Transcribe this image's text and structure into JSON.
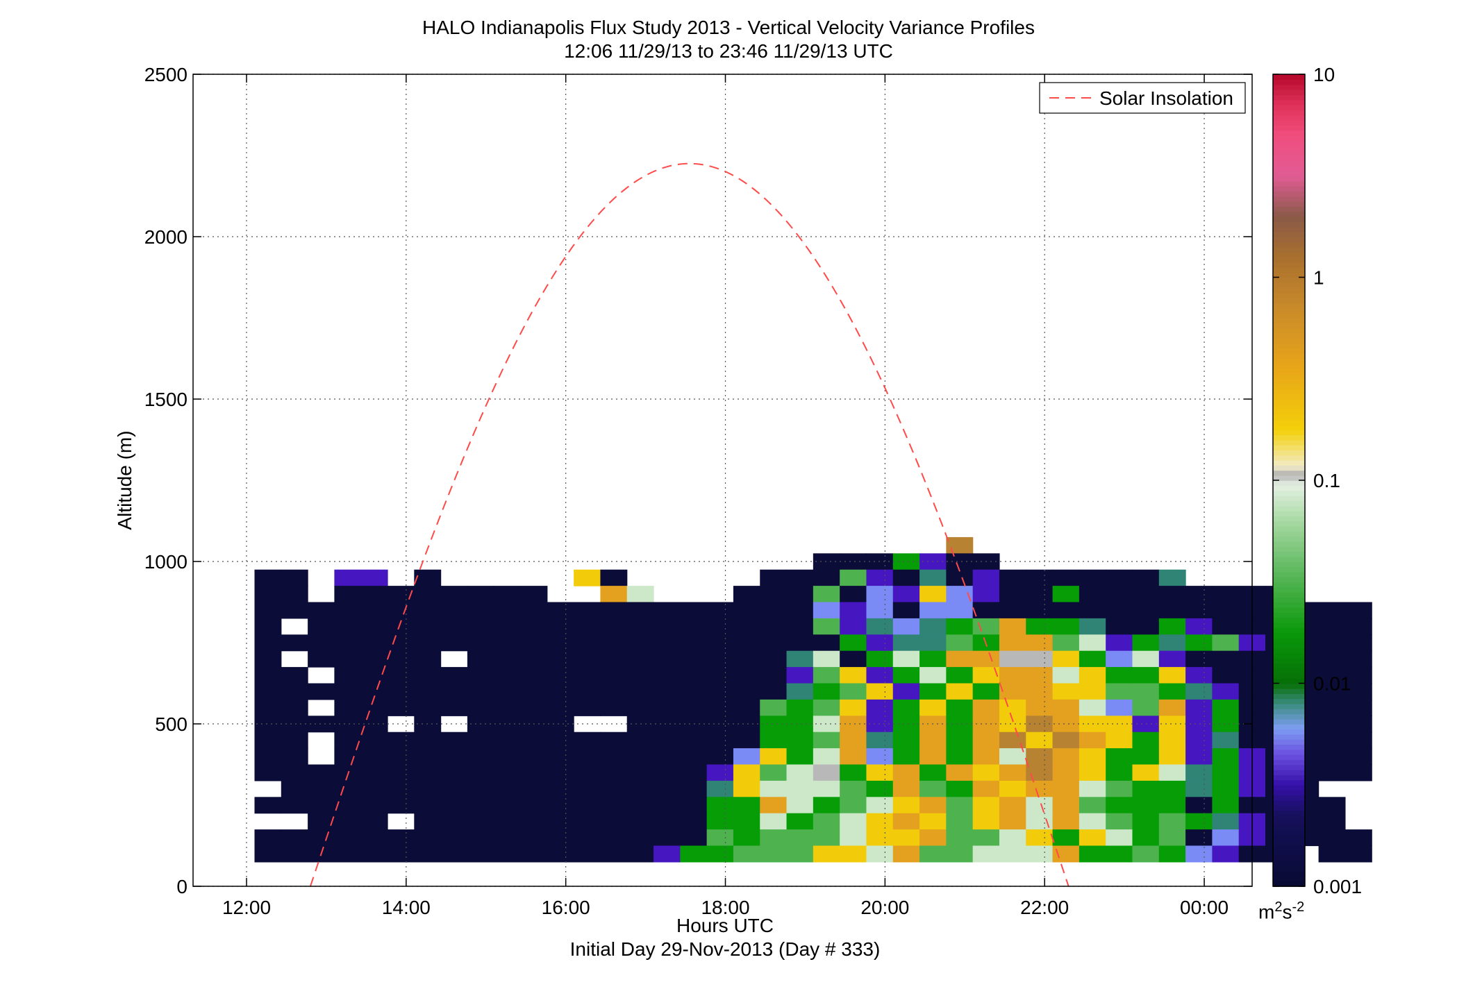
{
  "header": {
    "title_line1": "HALO Indianapolis Flux Study 2013 - Vertical Velocity Variance Profiles",
    "title_line2": "12:06 11/29/13 to 23:46 11/29/13  UTC"
  },
  "footer": {
    "xlabel": "Hours UTC",
    "subtitle": "Initial Day 29-Nov-2013 (Day # 333)"
  },
  "chart_data": {
    "type": "heatmap",
    "title": "HALO Indianapolis Flux Study 2013 - Vertical Velocity Variance Profiles",
    "subtitle": "12:06 11/29/13 to 23:46 11/29/13  UTC",
    "xlabel": "Hours UTC",
    "ylabel": "Altitude (m)",
    "x_unit": "hours UTC",
    "xlim": [
      11.33,
      24.6
    ],
    "ylim": [
      0,
      2500
    ],
    "x_ticks": [
      12,
      14,
      16,
      18,
      20,
      22,
      24
    ],
    "x_tick_labels": [
      "12:00",
      "14:00",
      "16:00",
      "18:00",
      "20:00",
      "22:00",
      "00:00"
    ],
    "y_ticks": [
      0,
      500,
      1000,
      1500,
      2000,
      2500
    ],
    "y_tick_labels": [
      "0",
      "500",
      "1000",
      "1500",
      "2000",
      "2500"
    ],
    "grid": true,
    "legend": {
      "position": "top-right",
      "entries": [
        {
          "label": "Solar Insolation",
          "style": "dashed",
          "color": "#ff4a4a"
        }
      ]
    },
    "colorbar": {
      "scale": "log",
      "range": [
        0.001,
        10
      ],
      "ticks": [
        0.001,
        0.01,
        0.1,
        1,
        10
      ],
      "tick_labels": [
        "0.001",
        "0.01",
        "0.1",
        "1",
        "10"
      ],
      "unit_base": "m",
      "unit_exp1": "2",
      "unit_mid": "s",
      "unit_exp2": "-2"
    },
    "heatmap_grid": {
      "x_start_hours": 12.1,
      "cell_width_hours": 0.3333,
      "y_start_m": 75,
      "cell_height_m": 50,
      "legend_key": "D: <0.001, P: ~0.003, B: ~0.005, T: ~0.008, G: ~0.01-0.02, L: ~0.05, W: ~0.1, S: ~0.13, Y: ~0.2, O: ~0.4, N: ~0.8, .: no data",
      "rows_top_to_bottom": [
        "..........................N...............",
        ".....................DDDGPDD..............",
        "DD.PP.D.....YD.....DDDLPDTDPDDDDDDT.......",
        "DD.DDDDDDDD..OW...DDDLDBPYBPDDGDDDDDDDD...",
        "DDDDDDDDDDDDDDDDDDDDDBPBDBBDDDDDDDDDDDDDDD",
        "D.DDDDDDDDDDDDDDDDDDDLPTBTGLOGGTDDGPDDDDDD",
        "DDDDDDDDDDDDDDDDDDDDDDGPTTLGOOLWPGTGLPDDDD",
        "D.DDDDD.DDDDDDDDDDDDTWDGWGOOSSYGBWPDDDDDDD",
        "DD.DDDDDDDDDDDDDDDDDPLYPGWGYOOWYGGYPDDDDDD",
        "DDDDDDDDDDDDDDDDDDDDTGLYPGYGOOYYLLGTPDDDDD",
        "DD.DDDDDDDDDDDDDDDDLGLYPGYGOYOOWBLOPGDDDDD",
        "DDDDD.D.DDDD..DDDDDGGWOPGOGOYNOYYPYPGDDDDD",
        "DD.DDDDDDDDDDDDDDDDGGLOTGOGONYNOYGYPTDDDDD",
        "DD.DDDDDDDDDDDDDDDBYGWOBGOGOWNOYGGYPGPDDDD",
        "DDDDDDDDDDDDDDDDDPYLWSGYOGOYONOYGYWTGPDDDD",
        ".DDDDDDDDDDDDDDDDTYWWWLGOLGOYOOWLGGTGPDD..",
        "DDDDDDDDDDDDDDDDDGGOWGLWYOLYOWOLGGGDGDDDD.",
        "..DDD.DDDDDDDDDDDGGWGLWYOYLYOWOWLGLGTPDDD.",
        "DDDDDDDDDDDDDDDDDLGLLLWYYOLLWYGYWGLDBPDDDD",
        "DDDDDDDDDDDDDDDPGGLLLYYWOLLWWWOGGLGBPDD.DD"
      ]
    }
  }
}
